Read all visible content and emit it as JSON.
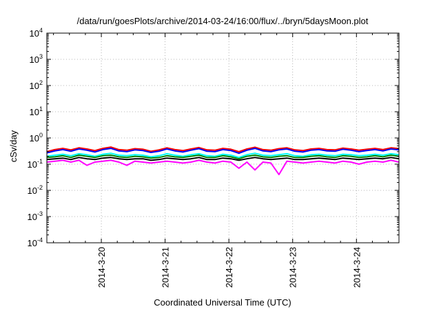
{
  "chart_data": {
    "type": "line",
    "title": "/data/run/goesPlots/archive/2014-03-24/16:00/flux/../bryn/5daysMoon.plot",
    "xlabel": "Coordinated Universal Time (UTC)",
    "ylabel": "cSv/day",
    "y_scale": "log",
    "ylim": [
      0.0001,
      10000
    ],
    "y_ticks": [
      {
        "value": 0.0001,
        "base": "10",
        "exp": "-4"
      },
      {
        "value": 0.001,
        "base": "10",
        "exp": "-3"
      },
      {
        "value": 0.01,
        "base": "10",
        "exp": "-2"
      },
      {
        "value": 0.1,
        "base": "10",
        "exp": "-1"
      },
      {
        "value": 1,
        "base": "10",
        "exp": "0"
      },
      {
        "value": 10,
        "base": "10",
        "exp": "1"
      },
      {
        "value": 100,
        "base": "10",
        "exp": "2"
      },
      {
        "value": 1000,
        "base": "10",
        "exp": "3"
      },
      {
        "value": 10000,
        "base": "10",
        "exp": "4"
      }
    ],
    "xlim": [
      "2014-03-19 03:30",
      "2014-03-24 16:00"
    ],
    "x_ticks": [
      {
        "date": "2014-03-20 00:00",
        "label": "2014-3-20"
      },
      {
        "date": "2014-03-21 00:00",
        "label": "2014-3-21"
      },
      {
        "date": "2014-03-22 00:00",
        "label": "2014-3-22"
      },
      {
        "date": "2014-03-23 00:00",
        "label": "2014-3-23"
      },
      {
        "date": "2014-03-24 00:00",
        "label": "2014-3-24"
      }
    ],
    "grid": true,
    "series": [
      {
        "color": "#ff0000",
        "y": [
          0.3,
          0.36,
          0.4,
          0.35,
          0.42,
          0.38,
          0.33,
          0.4,
          0.45,
          0.36,
          0.34,
          0.39,
          0.37,
          0.31,
          0.35,
          0.42,
          0.36,
          0.33,
          0.38,
          0.43,
          0.35,
          0.34,
          0.4,
          0.37,
          0.3,
          0.38,
          0.44,
          0.36,
          0.34,
          0.39,
          0.42,
          0.35,
          0.33,
          0.38,
          0.4,
          0.36,
          0.35,
          0.41,
          0.38,
          0.34,
          0.37,
          0.4,
          0.36,
          0.42,
          0.39
        ]
      },
      {
        "color": "#0000ff",
        "y": [
          0.27,
          0.32,
          0.36,
          0.31,
          0.38,
          0.34,
          0.29,
          0.36,
          0.4,
          0.32,
          0.3,
          0.35,
          0.33,
          0.28,
          0.31,
          0.38,
          0.32,
          0.29,
          0.34,
          0.39,
          0.31,
          0.3,
          0.36,
          0.33,
          0.26,
          0.34,
          0.4,
          0.32,
          0.3,
          0.35,
          0.38,
          0.31,
          0.29,
          0.34,
          0.36,
          0.32,
          0.31,
          0.37,
          0.34,
          0.3,
          0.33,
          0.36,
          0.32,
          0.38,
          0.35
        ]
      },
      {
        "color": "#00ffff",
        "y": [
          0.2,
          0.22,
          0.24,
          0.21,
          0.25,
          0.23,
          0.2,
          0.24,
          0.26,
          0.22,
          0.21,
          0.23,
          0.22,
          0.19,
          0.21,
          0.25,
          0.22,
          0.2,
          0.23,
          0.25,
          0.21,
          0.2,
          0.24,
          0.22,
          0.18,
          0.23,
          0.26,
          0.22,
          0.21,
          0.23,
          0.25,
          0.21,
          0.2,
          0.23,
          0.24,
          0.22,
          0.21,
          0.24,
          0.23,
          0.21,
          0.22,
          0.24,
          0.22,
          0.25,
          0.23
        ]
      },
      {
        "color": "#008000",
        "y": [
          0.18,
          0.19,
          0.21,
          0.18,
          0.22,
          0.2,
          0.18,
          0.21,
          0.22,
          0.19,
          0.18,
          0.2,
          0.19,
          0.17,
          0.18,
          0.21,
          0.19,
          0.18,
          0.2,
          0.22,
          0.18,
          0.18,
          0.21,
          0.19,
          0.16,
          0.2,
          0.22,
          0.19,
          0.18,
          0.2,
          0.21,
          0.18,
          0.18,
          0.2,
          0.21,
          0.19,
          0.18,
          0.21,
          0.2,
          0.18,
          0.19,
          0.21,
          0.19,
          0.22,
          0.2
        ]
      },
      {
        "color": "#000000",
        "y": [
          0.15,
          0.16,
          0.17,
          0.15,
          0.18,
          0.16,
          0.15,
          0.17,
          0.18,
          0.16,
          0.15,
          0.16,
          0.16,
          0.14,
          0.15,
          0.17,
          0.16,
          0.15,
          0.16,
          0.18,
          0.15,
          0.15,
          0.17,
          0.16,
          0.14,
          0.16,
          0.18,
          0.16,
          0.15,
          0.16,
          0.17,
          0.15,
          0.15,
          0.16,
          0.17,
          0.16,
          0.15,
          0.17,
          0.16,
          0.15,
          0.16,
          0.17,
          0.16,
          0.18,
          0.16
        ]
      },
      {
        "color": "#ff00ff",
        "y": [
          0.12,
          0.13,
          0.14,
          0.12,
          0.14,
          0.09,
          0.12,
          0.13,
          0.14,
          0.12,
          0.09,
          0.13,
          0.12,
          0.11,
          0.12,
          0.13,
          0.12,
          0.11,
          0.12,
          0.14,
          0.12,
          0.11,
          0.13,
          0.12,
          0.07,
          0.12,
          0.06,
          0.12,
          0.11,
          0.04,
          0.13,
          0.12,
          0.11,
          0.12,
          0.13,
          0.12,
          0.11,
          0.13,
          0.12,
          0.1,
          0.12,
          0.13,
          0.12,
          0.14,
          0.12
        ]
      }
    ]
  }
}
